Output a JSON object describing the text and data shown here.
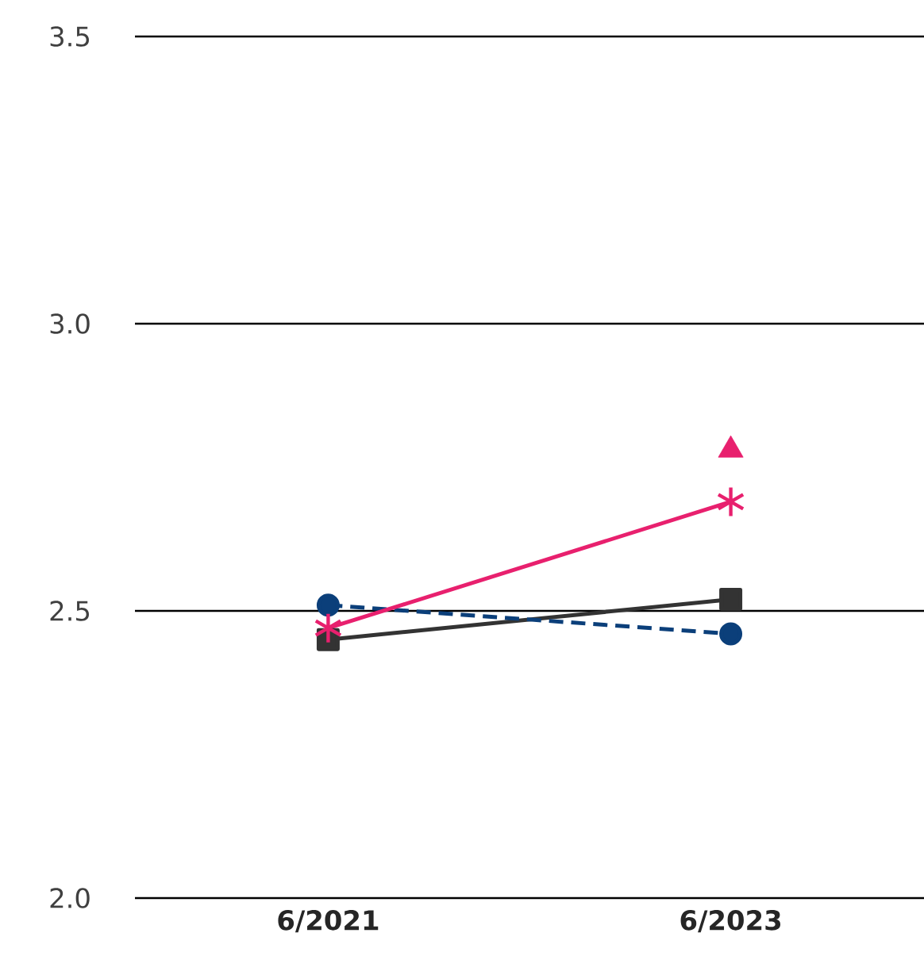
{
  "chart_data": {
    "type": "line",
    "categories": [
      "6/2021",
      "6/2023"
    ],
    "series": [
      {
        "color": "#333333",
        "values": [
          2.45,
          2.52
        ],
        "marker": "square",
        "line_style": "solid"
      },
      {
        "color": "#0b3f7a",
        "values": [
          2.51,
          2.46
        ],
        "marker": "circle",
        "line_style": "dashed"
      },
      {
        "color": "#e8206e",
        "values": [
          2.47,
          2.69
        ],
        "marker": "cross",
        "line_style": "solid"
      },
      {
        "type": "scatter",
        "color": "#e8206e",
        "values": [
          null,
          2.78
        ],
        "marker": "triangle"
      }
    ],
    "ylim": [
      2.0,
      3.5
    ],
    "yticks": [
      {
        "value": 2.0,
        "label": "2.0"
      },
      {
        "value": 2.5,
        "label": "2.5"
      },
      {
        "value": 3.0,
        "label": "3.0"
      },
      {
        "value": 3.5,
        "label": "3.5"
      }
    ],
    "grid": "y"
  }
}
